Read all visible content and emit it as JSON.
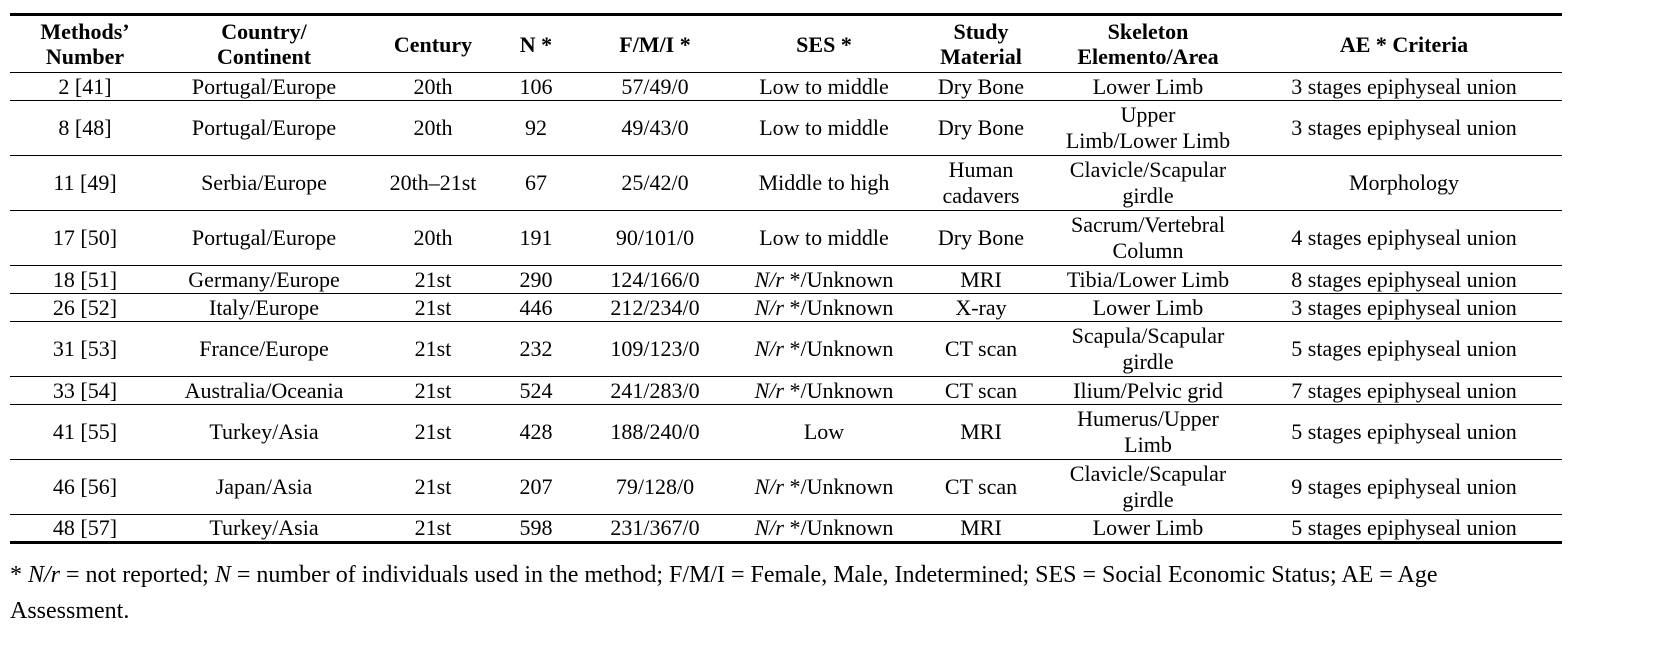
{
  "table": {
    "headers": [
      [
        "Methods’",
        "Number"
      ],
      [
        "Country/",
        "Continent"
      ],
      [
        "Century",
        ""
      ],
      [
        "N *",
        ""
      ],
      [
        "F/M/I *",
        ""
      ],
      [
        "SES *",
        ""
      ],
      [
        "Study",
        "Material"
      ],
      [
        "Skeleton",
        "Elemento/Area"
      ],
      [
        "AE * Criteria",
        ""
      ]
    ],
    "rows": [
      {
        "number": "2 [41]",
        "country": "Portugal/Europe",
        "century": "20th",
        "n": "106",
        "fmi": "57/49/0",
        "ses": "Low to middle",
        "material": [
          "Dry Bone",
          ""
        ],
        "element": [
          "Lower Limb",
          ""
        ],
        "criteria": "3 stages epiphyseal union"
      },
      {
        "number": "8 [48]",
        "country": "Portugal/Europe",
        "century": "20th",
        "n": "92",
        "fmi": "49/43/0",
        "ses": "Low to middle",
        "material": [
          "Dry Bone",
          ""
        ],
        "element": [
          "Upper",
          "Limb/Lower Limb"
        ],
        "criteria": "3 stages epiphyseal union"
      },
      {
        "number": "11 [49]",
        "country": "Serbia/Europe",
        "century": "20th–21st",
        "n": "67",
        "fmi": "25/42/0",
        "ses": "Middle to high",
        "material": [
          "Human",
          "cadavers"
        ],
        "element": [
          "Clavicle/Scapular",
          "girdle"
        ],
        "criteria": "Morphology"
      },
      {
        "number": "17 [50]",
        "country": "Portugal/Europe",
        "century": "20th",
        "n": "191",
        "fmi": "90/101/0",
        "ses": "Low to middle",
        "material": [
          "Dry Bone",
          ""
        ],
        "element": [
          "Sacrum/Vertebral",
          "Column"
        ],
        "criteria": "4 stages epiphyseal union"
      },
      {
        "number": "18 [51]",
        "country": "Germany/Europe",
        "century": "21st",
        "n": "290",
        "fmi": "124/166/0",
        "ses_it": "N/r",
        "ses": " */Unknown",
        "material": [
          "MRI",
          ""
        ],
        "element": [
          "Tibia/Lower Limb",
          ""
        ],
        "criteria": "8 stages epiphyseal union"
      },
      {
        "number": "26 [52]",
        "country": "Italy/Europe",
        "century": "21st",
        "n": "446",
        "fmi": "212/234/0",
        "ses_it": "N/r",
        "ses": " */Unknown",
        "material": [
          "X-ray",
          ""
        ],
        "element": [
          "Lower Limb",
          ""
        ],
        "criteria": "3 stages epiphyseal union"
      },
      {
        "number": "31 [53]",
        "country": "France/Europe",
        "century": "21st",
        "n": "232",
        "fmi": "109/123/0",
        "ses_it": "N/r",
        "ses": " */Unknown",
        "material": [
          "CT scan",
          ""
        ],
        "element": [
          "Scapula/Scapular",
          "girdle"
        ],
        "criteria": "5 stages epiphyseal union"
      },
      {
        "number": "33 [54]",
        "country": "Australia/Oceania",
        "century": "21st",
        "n": "524",
        "fmi": "241/283/0",
        "ses_it": "N/r",
        "ses": " */Unknown",
        "material": [
          "CT scan",
          ""
        ],
        "element": [
          "Ilium/Pelvic grid",
          ""
        ],
        "criteria": "7 stages epiphyseal union"
      },
      {
        "number": "41 [55]",
        "country": "Turkey/Asia",
        "century": "21st",
        "n": "428",
        "fmi": "188/240/0",
        "ses": "Low",
        "material": [
          "MRI",
          ""
        ],
        "element": [
          "Humerus/Upper",
          "Limb"
        ],
        "criteria": "5 stages epiphyseal union"
      },
      {
        "number": "46 [56]",
        "country": "Japan/Asia",
        "century": "21st",
        "n": "207",
        "fmi": "79/128/0",
        "ses_it": "N/r",
        "ses": " */Unknown",
        "material": [
          "CT scan",
          ""
        ],
        "element": [
          "Clavicle/Scapular",
          "girdle"
        ],
        "criteria": "9 stages epiphyseal union"
      },
      {
        "number": "48 [57]",
        "country": "Turkey/Asia",
        "century": "21st",
        "n": "598",
        "fmi": "231/367/0",
        "ses_it": "N/r",
        "ses": " */Unknown",
        "material": [
          "MRI",
          ""
        ],
        "element": [
          "Lower Limb",
          ""
        ],
        "criteria": "5 stages epiphyseal union"
      }
    ]
  },
  "footnote": {
    "star": "* ",
    "nr_it": "N/r",
    "t1": " = not reported; ",
    "n_it": "N",
    "t2": " = number of individuals used in the method; F/M/I = Female, Male, Indetermined; SES = Social Economic Status; AE = Age Assessment."
  }
}
